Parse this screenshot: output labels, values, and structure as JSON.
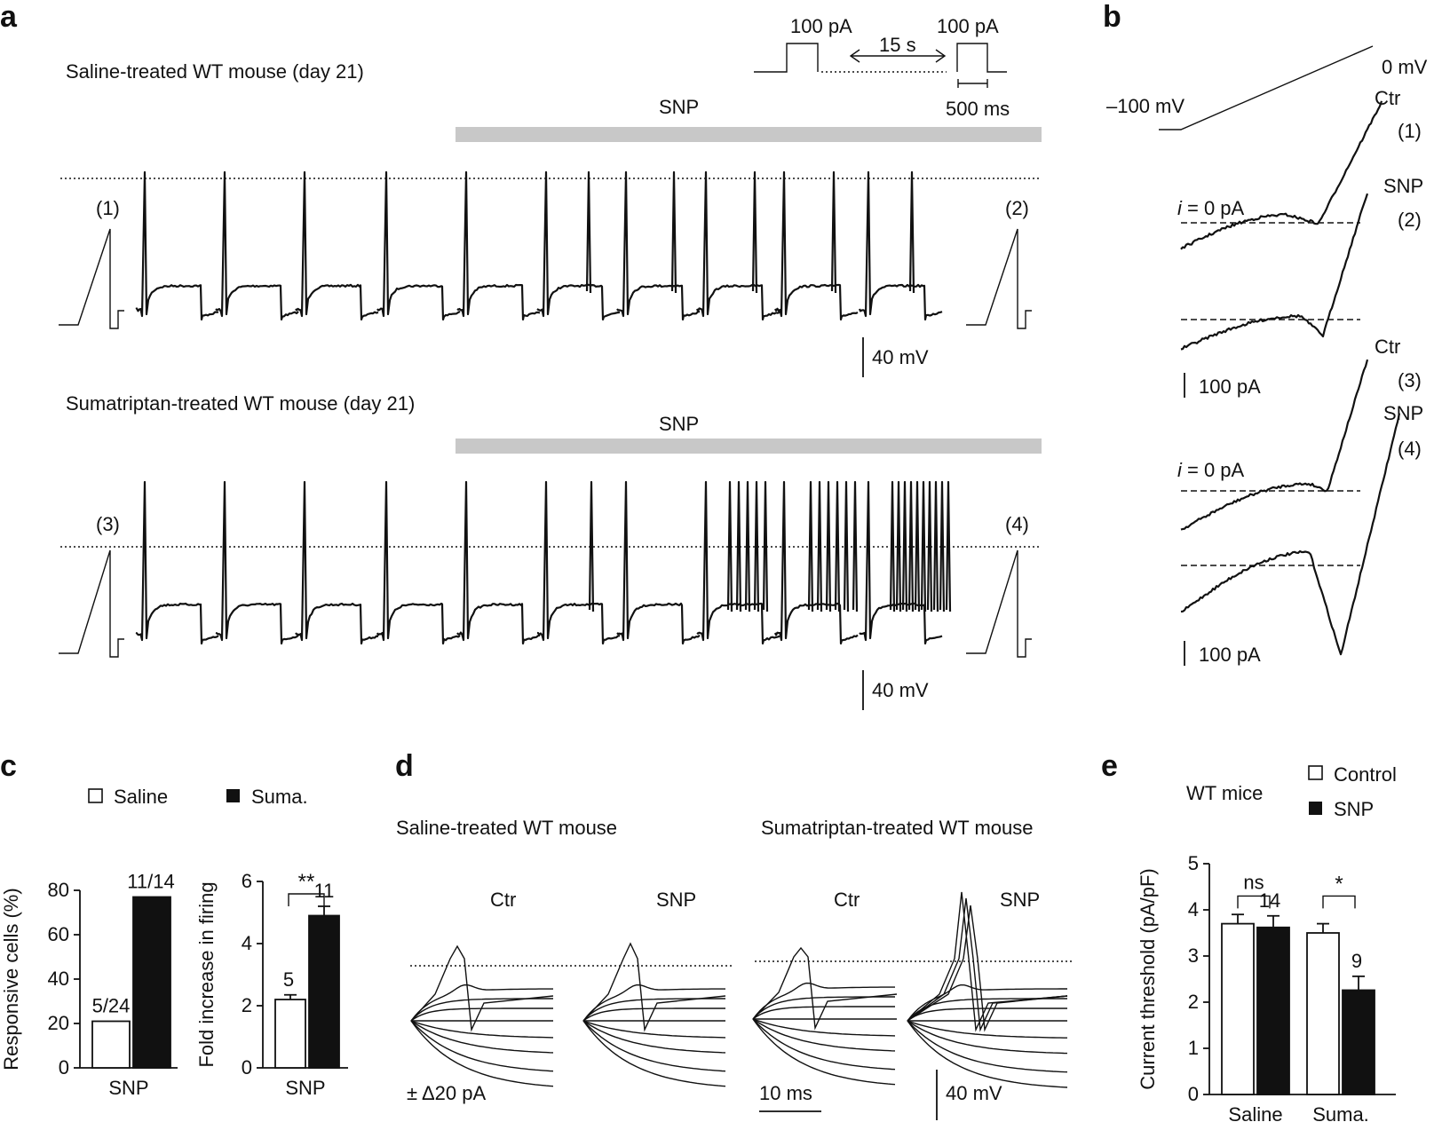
{
  "panel_labels": {
    "a": "a",
    "b": "b",
    "c": "c",
    "d": "d",
    "e": "e"
  },
  "panel_a": {
    "protocol": {
      "step1": "100 pA",
      "step2": "100 pA",
      "interval": "15 s",
      "scale": "500 ms"
    },
    "top": {
      "title": "Saline-treated WT mouse (day 21)",
      "bar": "SNP",
      "marker_left": "(1)",
      "marker_right": "(2)",
      "scale": "40 mV"
    },
    "bottom": {
      "title": "Sumatriptan-treated WT mouse (day 21)",
      "bar": "SNP",
      "marker_left": "(3)",
      "marker_right": "(4)",
      "scale": "40 mV"
    }
  },
  "panel_b": {
    "top_voltage": "0 mV",
    "bottom_voltage": "–100 mV",
    "i0_label": "i",
    "i0_rest": " = 0 pA",
    "labels": {
      "ctr1": "Ctr",
      "n1": "(1)",
      "snp2": "SNP",
      "n2": "(2)",
      "ctr3": "Ctr",
      "n3": "(3)",
      "snp4": "SNP",
      "n4": "(4)"
    },
    "scale1": "100 pA",
    "scale2": "100 pA"
  },
  "panel_d": {
    "left_title": "Saline-treated WT mouse",
    "right_title": "Sumatriptan-treated WT mouse",
    "sub": [
      "Ctr",
      "SNP",
      "Ctr",
      "SNP"
    ],
    "stim": "± Δ20 pA",
    "time_scale": "10 ms",
    "volt_scale": "40 mV"
  },
  "chart_data": [
    {
      "type": "bar",
      "title": "",
      "legend": [
        "Saline",
        "Suma."
      ],
      "categories": [
        "SNP"
      ],
      "series": [
        {
          "name": "Saline",
          "values": [
            21
          ]
        },
        {
          "name": "Suma.",
          "values": [
            77
          ]
        }
      ],
      "data_labels": [
        "5/24",
        "11/14"
      ],
      "xlabel": "SNP",
      "ylabel": "Responsive cells (%)",
      "ylim": [
        0,
        80
      ],
      "yticks": [
        "0",
        "20",
        "40",
        "60",
        "80"
      ]
    },
    {
      "type": "bar",
      "categories": [
        "SNP"
      ],
      "series": [
        {
          "name": "Saline",
          "values": [
            2.2
          ],
          "error": [
            0.15
          ]
        },
        {
          "name": "Suma.",
          "values": [
            4.9
          ],
          "error": [
            0.3
          ]
        }
      ],
      "data_labels": [
        "5",
        "11"
      ],
      "significance": "**",
      "xlabel": "SNP",
      "ylabel": "Fold increase in firing",
      "ylim": [
        0,
        6
      ],
      "yticks": [
        "0",
        "2",
        "4",
        "6"
      ]
    },
    {
      "type": "bar",
      "title": "WT mice",
      "legend": [
        "Control",
        "SNP"
      ],
      "categories": [
        "Saline",
        "Suma."
      ],
      "series": [
        {
          "name": "Control",
          "values": [
            3.7,
            3.5
          ],
          "error": [
            0.2,
            0.2
          ]
        },
        {
          "name": "SNP",
          "values": [
            3.62,
            2.26
          ],
          "error": [
            0.25,
            0.3
          ]
        }
      ],
      "data_labels": [
        "14",
        "9"
      ],
      "significance": [
        "ns",
        "*"
      ],
      "ylabel": "Current threshold (pA/pF)",
      "ylim": [
        0,
        5
      ],
      "yticks": [
        "0",
        "1",
        "2",
        "3",
        "4",
        "5"
      ]
    }
  ],
  "colors": {
    "ink": "#111111",
    "bar_gray": "#c8c8c8",
    "filled": "#111111",
    "open": "#ffffff"
  }
}
